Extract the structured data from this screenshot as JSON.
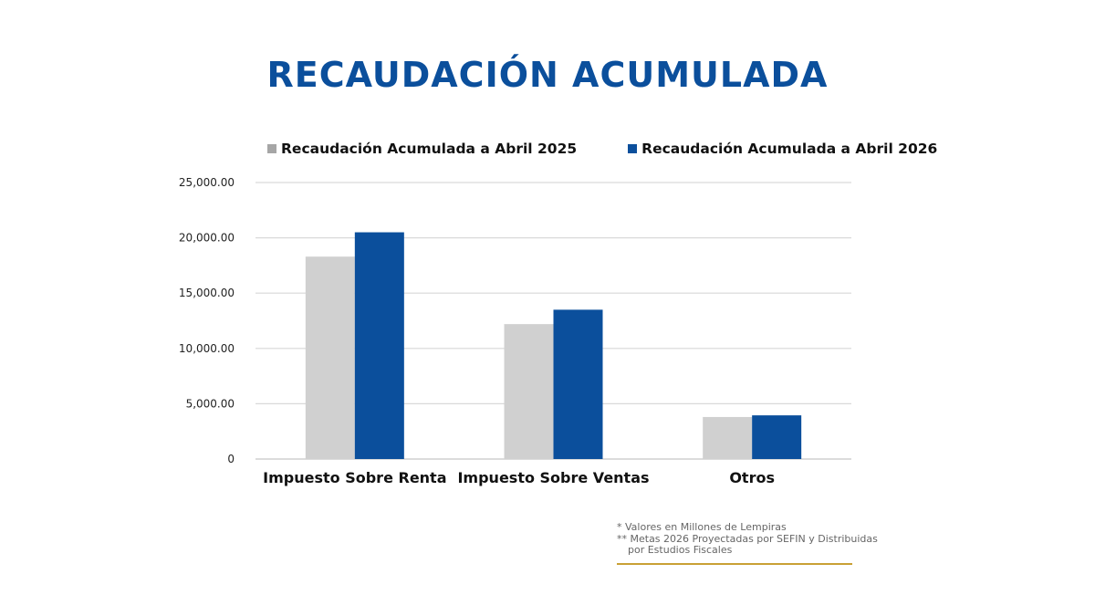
{
  "title": "RECAUDACIÓN ACUMULADA",
  "colors": {
    "title": "#0b4f9c",
    "series_2025": "#d0d0d0",
    "series_2026": "#0b4f9c",
    "legend_2025": "#a6a6a6",
    "rule": "#c9a035"
  },
  "chart_data": {
    "type": "bar",
    "categories": [
      "Impuesto Sobre Renta",
      "Impuesto Sobre Ventas",
      "Otros"
    ],
    "series": [
      {
        "name": "Recaudación Acumulada a Abril 2025",
        "values": [
          18300,
          12200,
          3800
        ]
      },
      {
        "name": "Recaudación Acumulada a Abril 2026",
        "values": [
          20500,
          13500,
          3950
        ]
      }
    ],
    "yticks": [
      "25,000.00",
      "20,000.00",
      "15,000.00",
      "10,000.00",
      "5,000.00",
      "0"
    ],
    "ytick_values": [
      25000,
      20000,
      15000,
      10000,
      5000,
      0
    ],
    "ylim": [
      0,
      25000
    ],
    "grid": true,
    "legend_position": "top"
  },
  "notes": {
    "line1": "*  Valores en Millones de Lempiras",
    "line2": "** Metas 2026 Proyectadas por SEFIN y Distribuidas",
    "line3": "por Estudios Fiscales"
  }
}
